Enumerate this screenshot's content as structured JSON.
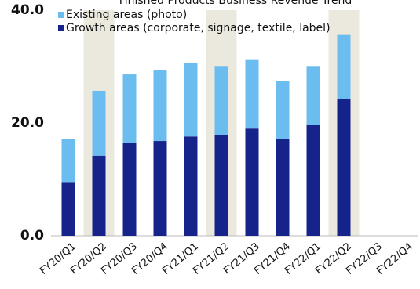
{
  "chart_data": {
    "type": "stacked_bar",
    "title": "Finished Products Business Revenue Trend",
    "categories": [
      "FY20/Q1",
      "FY20/Q2",
      "FY20/Q3",
      "FY20/Q4",
      "FY21/Q1",
      "FY21/Q2",
      "FY21/Q3",
      "FY21/Q4",
      "FY22/Q1",
      "FY22/Q2",
      "FY22/Q3",
      "FY22/Q4"
    ],
    "series": [
      {
        "name": "Growth areas (corporate, signage, textile, label)",
        "color": "#15238a",
        "values": [
          9.4,
          14.2,
          16.4,
          16.8,
          17.6,
          17.8,
          19.0,
          17.2,
          19.7,
          24.3,
          null,
          null
        ]
      },
      {
        "name": "Existing areas (photo)",
        "color": "#6bbdf0",
        "values": [
          7.7,
          11.5,
          12.2,
          12.6,
          13.0,
          12.3,
          12.3,
          10.2,
          10.4,
          11.3,
          null,
          null
        ]
      }
    ],
    "highlighted_categories": [
      "FY20/Q2",
      "FY21/Q2",
      "FY22/Q2"
    ],
    "highlight_color": "#ebe8de",
    "ylim": [
      0,
      40
    ],
    "yticks": [
      {
        "value": 0,
        "label": "0.0"
      },
      {
        "value": 20,
        "label": "20.0"
      },
      {
        "value": 40,
        "label": "40.0"
      }
    ],
    "grid": false
  }
}
